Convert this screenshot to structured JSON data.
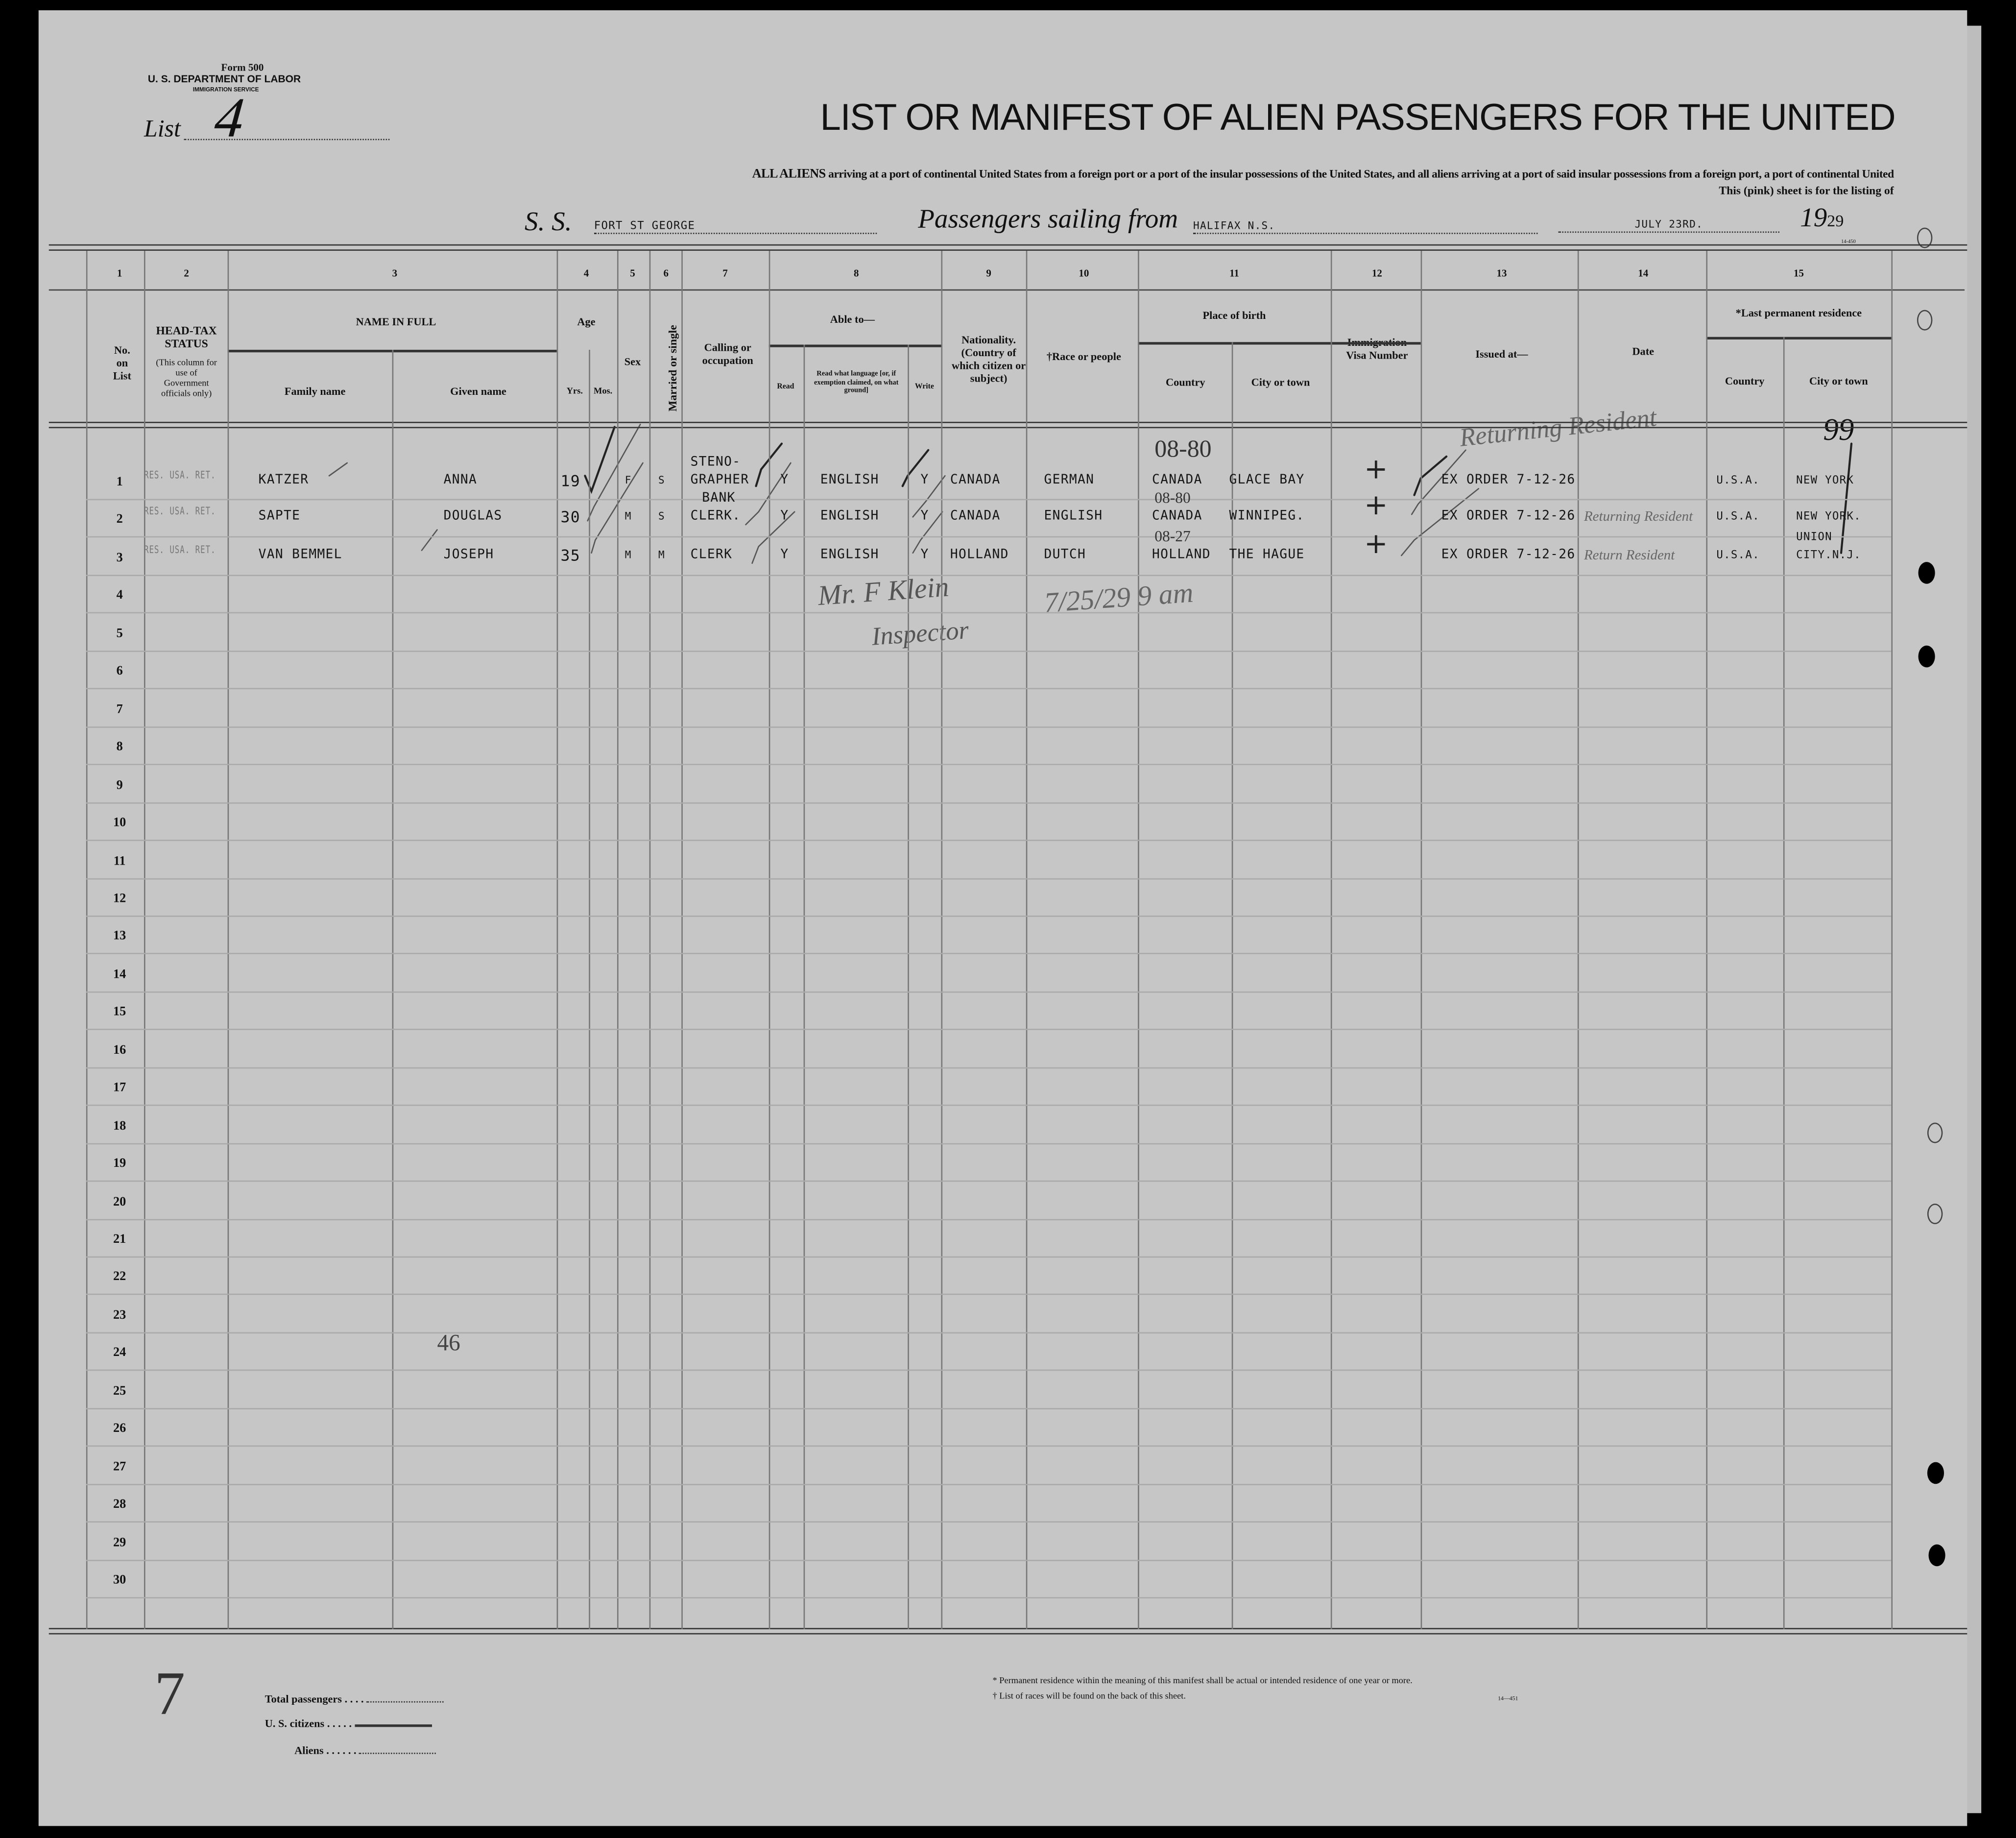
{
  "form": {
    "number": "Form 500",
    "department": "U. S. DEPARTMENT OF LABOR",
    "service": "IMMIGRATION SERVICE",
    "list_label": "List",
    "list_number": "4"
  },
  "title": "LIST OR MANIFEST OF ALIEN PASSENGERS FOR THE UNITED",
  "subtitle": {
    "lead": "ALL ALIENS",
    "line1": "arriving at a port of continental United States from a foreign port or a port of the insular possessions of the United States, and all aliens arriving at a port of said insular possessions from a foreign port, a port of continental United",
    "line2": "This (pink) sheet is for the listing of"
  },
  "voyage": {
    "ss_label": "S. S.",
    "ship": "FORT ST GEORGE",
    "sailing_label": "Passengers sailing from",
    "port": "HALIFAX N.S.",
    "date": "JULY 23RD.",
    "year_prefix": "19",
    "year_suffix": "29",
    "form_code": "14-450"
  },
  "columns": {
    "numbers": [
      "1",
      "2",
      "3",
      "4",
      "5",
      "6",
      "7",
      "8",
      "9",
      "10",
      "11",
      "12",
      "13",
      "14",
      "15"
    ],
    "no_on_list": "No. on List",
    "head_tax": "HEAD-TAX STATUS",
    "head_tax_note": "(This column for use of Government officials only)",
    "name_in_full": "NAME IN FULL",
    "family_name": "Family name",
    "given_name": "Given name",
    "age": "Age",
    "yrs": "Yrs.",
    "mos": "Mos.",
    "sex": "Sex",
    "married": "Married or single",
    "calling": "Calling or occupation",
    "able_to": "Able to—",
    "read": "Read",
    "read_language": "Read what language [or, if exemption claimed, on what ground]",
    "write": "Write",
    "nationality": "Nationality. (Country of which citizen or subject)",
    "race": "†Race or people",
    "place_of_birth": "Place of birth",
    "birth_country": "Country",
    "birth_city": "City or town",
    "visa": "Immigration Visa Number",
    "issued_at": "Issued at—",
    "date": "Date",
    "last_residence": "*Last permanent residence",
    "res_country": "Country",
    "res_city": "City or town"
  },
  "row_numbers": [
    "1",
    "2",
    "3",
    "4",
    "5",
    "6",
    "7",
    "8",
    "9",
    "10",
    "11",
    "12",
    "13",
    "14",
    "15",
    "16",
    "17",
    "18",
    "19",
    "20",
    "21",
    "22",
    "23",
    "24",
    "25",
    "26",
    "27",
    "28",
    "29",
    "30"
  ],
  "passengers": [
    {
      "status": "RES. USA. RET.",
      "family": "KATZER",
      "given": "ANNA",
      "yrs": "19",
      "sex": "F",
      "married": "S",
      "calling_top": "STENO-",
      "calling": "GRAPHER",
      "read": "Y",
      "language": "ENGLISH",
      "write": "Y",
      "nationality": "CANADA",
      "race": "GERMAN",
      "birth_country": "CANADA",
      "birth_city": "GLACE BAY",
      "visa": "+",
      "issued": "EX ORDER 7-12-26",
      "res_country": "U.S.A.",
      "res_city_top": "",
      "res_city": "NEW YORK",
      "birth_note": "08-80"
    },
    {
      "status": "RES. USA. RET.",
      "family": "SAPTE",
      "given": "DOUGLAS",
      "yrs": "30",
      "sex": "M",
      "married": "S",
      "calling_top": "BANK",
      "calling": "CLERK.",
      "read": "Y",
      "language": "ENGLISH",
      "write": "Y",
      "nationality": "CANADA",
      "race": "ENGLISH",
      "birth_country": "CANADA",
      "birth_city": "WINNIPEG.",
      "visa": "+",
      "issued": "EX ORDER 7-12-26",
      "res_country": "U.S.A.",
      "res_city_top": "",
      "res_city": "NEW YORK.",
      "birth_note": "08-80"
    },
    {
      "status": "RES. USA. RET.",
      "family": "VAN BEMMEL",
      "given": "JOSEPH",
      "yrs": "35",
      "sex": "M",
      "married": "M",
      "calling_top": "",
      "calling": "CLERK",
      "read": "Y",
      "language": "ENGLISH",
      "write": "Y",
      "nationality": "HOLLAND",
      "race": "DUTCH",
      "birth_country": "HOLLAND",
      "birth_city": "THE HAGUE",
      "visa": "+",
      "issued": "EX ORDER 7-12-26",
      "res_country": "U.S.A.",
      "res_city_top": "UNION",
      "res_city": "CITY.N.J.",
      "birth_note": "08-27"
    }
  ],
  "annotations": {
    "returning_1": "Returning Resident",
    "returning_2": "Returning Resident",
    "returning_3": "Return Resident",
    "count_mark": "99",
    "inspector": "Mr. F Klein",
    "inspector_title": "Inspector",
    "inspection_time": "7/25/29 9 am",
    "page_mark": "46",
    "margin_mark": "7"
  },
  "totals": {
    "total_passengers": "Total passengers",
    "us_citizens": "U. S. citizens",
    "aliens": "Aliens"
  },
  "footnotes": {
    "permanent": "* Permanent residence within the meaning of this manifest shall be actual or intended residence of one year or more.",
    "races": "† List of races will be found on the back of this sheet.",
    "code": "14—451"
  }
}
